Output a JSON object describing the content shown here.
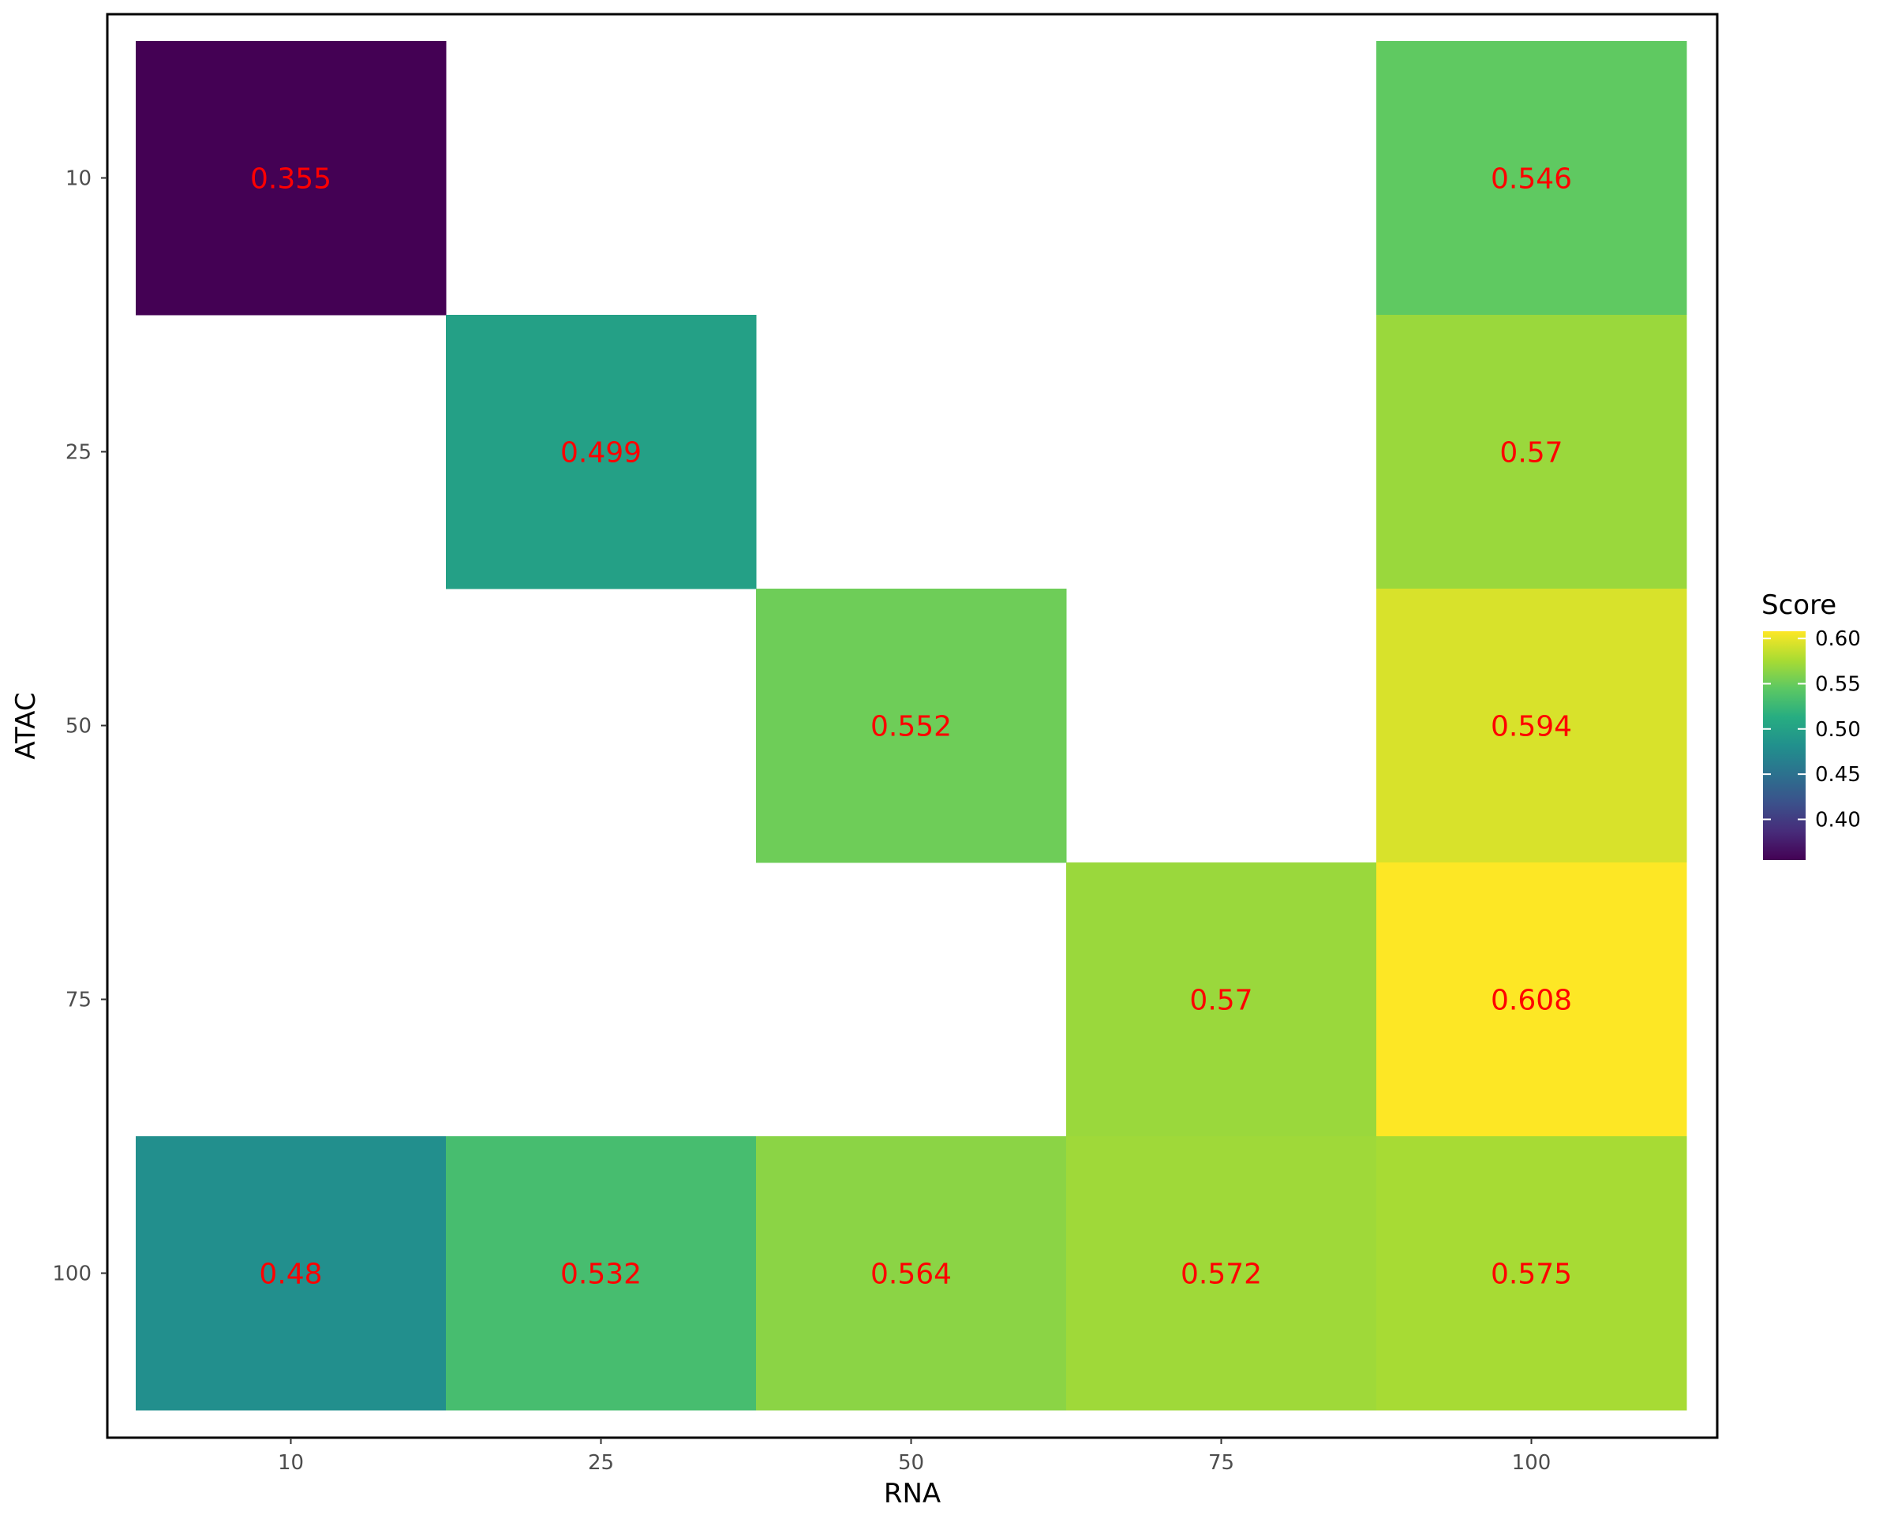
{
  "chart_data": {
    "type": "heatmap",
    "xlabel": "RNA",
    "ylabel": "ATAC",
    "x_categories": [
      "10",
      "25",
      "50",
      "75",
      "100"
    ],
    "y_categories": [
      "10",
      "25",
      "50",
      "75",
      "100"
    ],
    "cells": [
      {
        "x": "10",
        "y": "10",
        "value": 0.355,
        "label": "0.355"
      },
      {
        "x": "100",
        "y": "10",
        "value": 0.546,
        "label": "0.546"
      },
      {
        "x": "25",
        "y": "25",
        "value": 0.499,
        "label": "0.499"
      },
      {
        "x": "100",
        "y": "25",
        "value": 0.57,
        "label": "0.57"
      },
      {
        "x": "50",
        "y": "50",
        "value": 0.552,
        "label": "0.552"
      },
      {
        "x": "100",
        "y": "50",
        "value": 0.594,
        "label": "0.594"
      },
      {
        "x": "75",
        "y": "75",
        "value": 0.57,
        "label": "0.57"
      },
      {
        "x": "100",
        "y": "75",
        "value": 0.608,
        "label": "0.608"
      },
      {
        "x": "10",
        "y": "100",
        "value": 0.48,
        "label": "0.48"
      },
      {
        "x": "25",
        "y": "100",
        "value": 0.532,
        "label": "0.532"
      },
      {
        "x": "50",
        "y": "100",
        "value": 0.564,
        "label": "0.564"
      },
      {
        "x": "75",
        "y": "100",
        "value": 0.572,
        "label": "0.572"
      },
      {
        "x": "100",
        "y": "100",
        "value": 0.575,
        "label": "0.575"
      }
    ],
    "colorbar": {
      "title": "Score",
      "range": [
        0.355,
        0.608
      ],
      "ticks": [
        "0.40",
        "0.45",
        "0.50",
        "0.55",
        "0.60"
      ],
      "colormap": "viridis"
    },
    "legend_position": "right",
    "label_color": "#ff0000"
  }
}
